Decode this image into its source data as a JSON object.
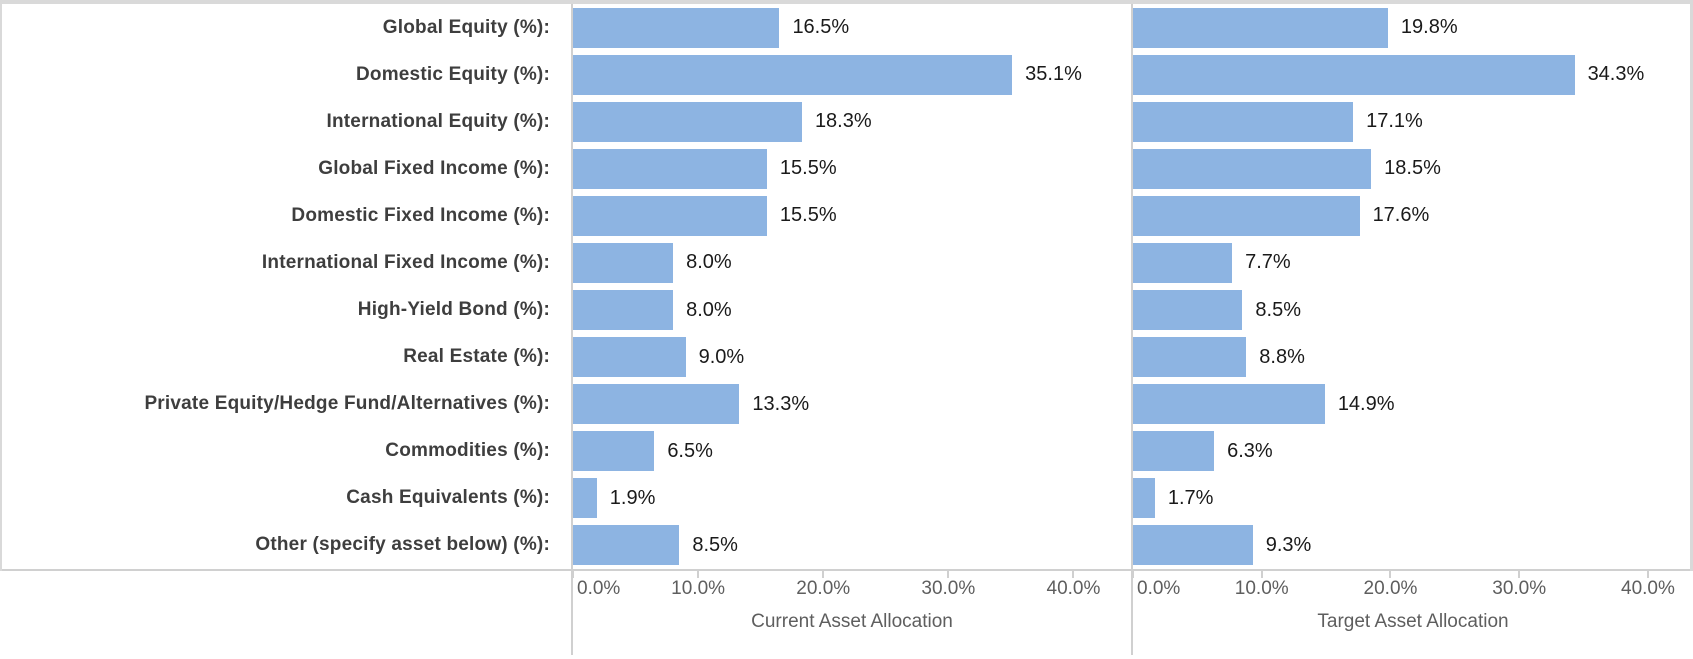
{
  "chart_data": {
    "type": "bar",
    "orientation": "horizontal",
    "title": "",
    "grid": false,
    "legend": "none",
    "xlim": [
      0,
      44
    ],
    "categories": [
      "Global Equity (%):",
      "Domestic Equity (%):",
      "International Equity (%):",
      "Global Fixed Income (%):",
      "Domestic Fixed Income (%):",
      "International Fixed Income (%):",
      "High-Yield Bond (%):",
      "Real Estate (%):",
      "Private Equity/Hedge Fund/Alternatives (%):",
      "Commodities (%):",
      "Cash Equivalents (%):",
      "Other (specify asset below) (%):"
    ],
    "series": [
      {
        "name": "Current Asset Allocation",
        "values": [
          16.5,
          35.1,
          18.3,
          15.5,
          15.5,
          8.0,
          8.0,
          9.0,
          13.3,
          6.5,
          1.9,
          8.5
        ],
        "labels": [
          "16.5%",
          "35.1%",
          "18.3%",
          "15.5%",
          "15.5%",
          "8.0%",
          "8.0%",
          "9.0%",
          "13.3%",
          "6.5%",
          "1.9%",
          "8.5%"
        ],
        "axis_max": 44.6
      },
      {
        "name": "Target Asset Allocation",
        "values": [
          19.8,
          34.3,
          17.1,
          18.5,
          17.6,
          7.7,
          8.5,
          8.8,
          14.9,
          6.3,
          1.7,
          9.3
        ],
        "labels": [
          "19.8%",
          "34.3%",
          "17.1%",
          "18.5%",
          "17.6%",
          "7.7%",
          "8.5%",
          "8.8%",
          "14.9%",
          "6.3%",
          "1.7%",
          "9.3%"
        ],
        "axis_max": 43.5
      }
    ],
    "x_ticks": {
      "values": [
        0,
        10,
        20,
        30,
        40
      ],
      "labels": [
        "0.0%",
        "10.0%",
        "20.0%",
        "30.0%",
        "40.0%"
      ]
    },
    "xlabel_left": "Current Asset Allocation",
    "xlabel_right": "Target Asset Allocation",
    "ylabel": ""
  },
  "styles": {
    "bar_color": "#8db4e2",
    "category_label_color": "#3e3e3e",
    "value_label_color": "#1a1a1a",
    "tick_label_color": "#5e5e5e",
    "axis_title_color": "#5e5e5e",
    "line_color": "#d0d0d0",
    "top_strip_color": "#d9d9d9",
    "background": "#ffffff"
  }
}
